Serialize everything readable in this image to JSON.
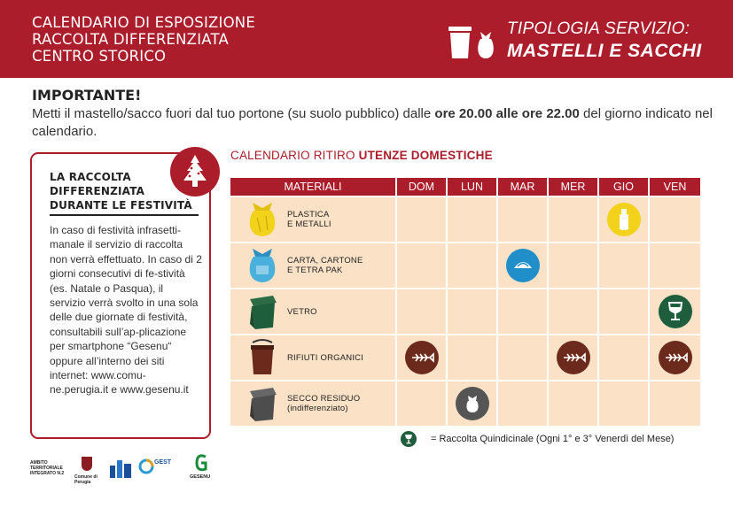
{
  "header": {
    "lines": [
      "CALENDARIO DI ESPOSIZIONE",
      "RACCOLTA DIFFERENZIATA",
      "CENTRO STORICO"
    ],
    "service_sub": "TIPOLOGIA SERVIZIO:",
    "service_main": "MASTELLI E SACCHI",
    "icons": [
      "bin-icon",
      "bag-icon"
    ]
  },
  "notice": {
    "title": "IMPORTANTE!",
    "text_before": "Metti il mastello/sacco fuori dal tuo portone (su suolo pubblico) dalle ",
    "text_bold": "ore 20.00 alle ore 22.00",
    "text_after": " del giorno indicato nel calendario."
  },
  "holiday": {
    "title_lines": [
      "LA RACCOLTA",
      "DIFFERENZIATA",
      "DURANTE LE FESTIVITÀ"
    ],
    "text": "In caso di festività infrasetti-manale il servizio di raccolta non verrà effettuato. In caso di 2 giorni consecutivi di fe-stività (es. Natale o Pasqua), il servizio verrà svolto in una sola delle due giornate di festività, consultabili sull’ap-plicazione per smartphone “Gesenu“ oppure all’interno dei siti internet: www.comu-ne.perugia.it e www.gesenu.it",
    "badge_icon": "christmas-tree-icon"
  },
  "calendar": {
    "title_plain": "CALENDARIO RITIRO ",
    "title_bold": "UTENZE DOMESTICHE",
    "col_materials": "MATERIALI",
    "days": [
      "DOM",
      "LUN",
      "MAR",
      "MER",
      "GIO",
      "VEN"
    ],
    "rows": [
      {
        "label1": "PLASTICA",
        "label2": "E METALLI",
        "icon": "yellow-bag-icon",
        "marks": {
          "GIO": "bottle-icon"
        }
      },
      {
        "label1": "CARTA, CARTONE",
        "label2": "E TETRA PAK",
        "icon": "blue-bag-icon",
        "marks": {
          "MAR": "paper-icon"
        }
      },
      {
        "label1": "VETRO",
        "label2": "",
        "icon": "green-bin-icon",
        "marks": {
          "VEN": "glass-icon"
        }
      },
      {
        "label1": "RIFIUTI ORGANICI",
        "label2": "",
        "icon": "brown-bin-icon",
        "marks": {
          "DOM": "fishbone-icon",
          "MER": "fishbone-icon",
          "VEN": "fishbone-icon"
        }
      },
      {
        "label1": "SECCO RESIDUO",
        "label2": "(indifferenziato)",
        "icon": "grey-bin-icon",
        "marks": {
          "LUN": "waste-bag-icon"
        }
      }
    ],
    "colors": {
      "plastica": "#f2d21b",
      "carta": "#1f8ec9",
      "vetro": "#1e5e3c",
      "organico": "#6b2a1b",
      "secco": "#555555",
      "cell": "#fbe2c7",
      "brand": "#ab1d2b"
    }
  },
  "legend": {
    "text": "= Raccolta Quindicinale (Ogni 1° e 3° Venerdì del Mese)"
  },
  "logos": {
    "ambito": "AMBITO TERRITORIALE INTEGRATO N.2",
    "comune": "Comune di Perugia",
    "gest": "GEST",
    "gesenu": "GESENU"
  }
}
